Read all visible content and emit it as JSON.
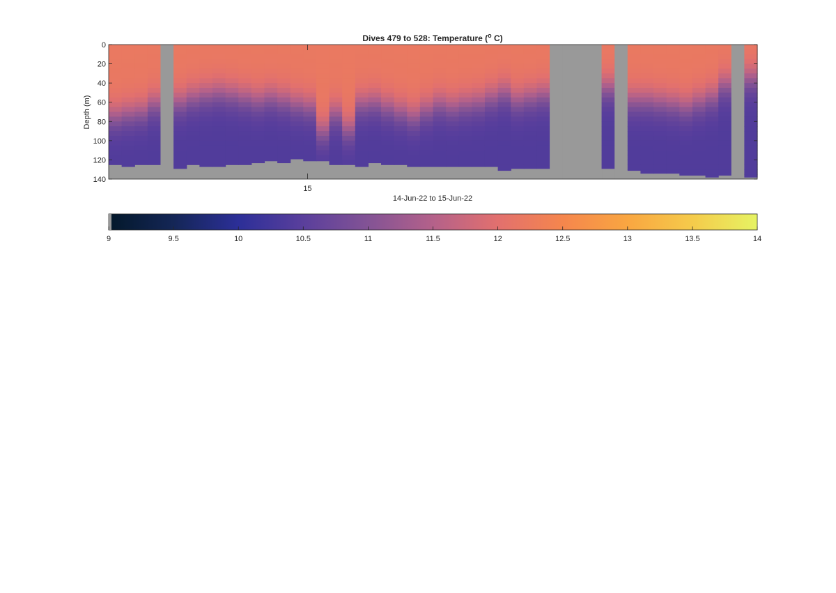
{
  "chart_data": {
    "type": "heatmap",
    "title_main": "Dives 479 to 528: Temperature (",
    "title_sup": "o",
    "title_end": " C)",
    "title_full": "Dives 479 to 528: Temperature (o C)",
    "xlabel": "14-Jun-22 to 15-Jun-22",
    "ylabel": "Depth (m)",
    "xtick_labels": [
      "15"
    ],
    "xtick_fraction": [
      0.3066
    ],
    "y_ticks": [
      0,
      20,
      40,
      60,
      80,
      100,
      120,
      140
    ],
    "ylim": [
      0,
      140
    ],
    "y_reversed": true,
    "dives": [
      479,
      528
    ],
    "no_data_color": "#999999",
    "no_data_columns": [
      4,
      34,
      35,
      36,
      37,
      39,
      48
    ],
    "profiles": [
      {
        "dive": 479,
        "surface_temp": 12.2,
        "thermocline_depth": 75,
        "bottom_temp": 10.4,
        "max_depth": 125
      },
      {
        "dive": 480,
        "surface_temp": 12.2,
        "thermocline_depth": 72,
        "bottom_temp": 10.4,
        "max_depth": 127
      },
      {
        "dive": 481,
        "surface_temp": 12.2,
        "thermocline_depth": 70,
        "bottom_temp": 10.4,
        "max_depth": 125
      },
      {
        "dive": 482,
        "surface_temp": 12.2,
        "thermocline_depth": 62,
        "bottom_temp": 10.4,
        "max_depth": 125
      },
      {
        "dive": 483,
        "surface_temp": null,
        "thermocline_depth": null,
        "bottom_temp": null,
        "max_depth": 140
      },
      {
        "dive": 484,
        "surface_temp": 12.2,
        "thermocline_depth": 60,
        "bottom_temp": 10.4,
        "max_depth": 129
      },
      {
        "dive": 485,
        "surface_temp": 12.2,
        "thermocline_depth": 55,
        "bottom_temp": 10.4,
        "max_depth": 125
      },
      {
        "dive": 486,
        "surface_temp": 12.2,
        "thermocline_depth": 52,
        "bottom_temp": 10.4,
        "max_depth": 127
      },
      {
        "dive": 487,
        "surface_temp": 12.2,
        "thermocline_depth": 50,
        "bottom_temp": 10.4,
        "max_depth": 127
      },
      {
        "dive": 488,
        "surface_temp": 12.2,
        "thermocline_depth": 52,
        "bottom_temp": 10.4,
        "max_depth": 125
      },
      {
        "dive": 489,
        "surface_temp": 12.2,
        "thermocline_depth": 55,
        "bottom_temp": 10.4,
        "max_depth": 125
      },
      {
        "dive": 490,
        "surface_temp": 12.2,
        "thermocline_depth": 58,
        "bottom_temp": 10.4,
        "max_depth": 123
      },
      {
        "dive": 491,
        "surface_temp": 12.2,
        "thermocline_depth": 55,
        "bottom_temp": 10.4,
        "max_depth": 121
      },
      {
        "dive": 492,
        "surface_temp": 12.2,
        "thermocline_depth": 58,
        "bottom_temp": 10.4,
        "max_depth": 123
      },
      {
        "dive": 493,
        "surface_temp": 12.2,
        "thermocline_depth": 62,
        "bottom_temp": 10.4,
        "max_depth": 119
      },
      {
        "dive": 494,
        "surface_temp": 12.2,
        "thermocline_depth": 65,
        "bottom_temp": 10.4,
        "max_depth": 121
      },
      {
        "dive": 495,
        "surface_temp": 12.2,
        "thermocline_depth": 90,
        "bottom_temp": 10.4,
        "max_depth": 121
      },
      {
        "dive": 496,
        "surface_temp": 12.2,
        "thermocline_depth": 72,
        "bottom_temp": 10.4,
        "max_depth": 125
      },
      {
        "dive": 497,
        "surface_temp": 12.2,
        "thermocline_depth": 88,
        "bottom_temp": 10.4,
        "max_depth": 125
      },
      {
        "dive": 498,
        "surface_temp": 12.2,
        "thermocline_depth": 62,
        "bottom_temp": 10.4,
        "max_depth": 127
      },
      {
        "dive": 499,
        "surface_temp": 12.2,
        "thermocline_depth": 60,
        "bottom_temp": 10.4,
        "max_depth": 123
      },
      {
        "dive": 500,
        "surface_temp": 12.2,
        "thermocline_depth": 65,
        "bottom_temp": 10.4,
        "max_depth": 125
      },
      {
        "dive": 501,
        "surface_temp": 12.2,
        "thermocline_depth": 70,
        "bottom_temp": 10.4,
        "max_depth": 125
      },
      {
        "dive": 502,
        "surface_temp": 12.2,
        "thermocline_depth": 75,
        "bottom_temp": 10.4,
        "max_depth": 127
      },
      {
        "dive": 503,
        "surface_temp": 12.2,
        "thermocline_depth": 68,
        "bottom_temp": 10.4,
        "max_depth": 127
      },
      {
        "dive": 504,
        "surface_temp": 12.2,
        "thermocline_depth": 62,
        "bottom_temp": 10.4,
        "max_depth": 127
      },
      {
        "dive": 505,
        "surface_temp": 12.2,
        "thermocline_depth": 65,
        "bottom_temp": 10.4,
        "max_depth": 127
      },
      {
        "dive": 506,
        "surface_temp": 12.2,
        "thermocline_depth": 62,
        "bottom_temp": 10.4,
        "max_depth": 127
      },
      {
        "dive": 507,
        "surface_temp": 12.2,
        "thermocline_depth": 60,
        "bottom_temp": 10.4,
        "max_depth": 127
      },
      {
        "dive": 508,
        "surface_temp": 12.2,
        "thermocline_depth": 55,
        "bottom_temp": 10.4,
        "max_depth": 127
      },
      {
        "dive": 509,
        "surface_temp": 12.2,
        "thermocline_depth": 50,
        "bottom_temp": 10.4,
        "max_depth": 131
      },
      {
        "dive": 510,
        "surface_temp": 12.2,
        "thermocline_depth": 58,
        "bottom_temp": 10.4,
        "max_depth": 129
      },
      {
        "dive": 511,
        "surface_temp": 12.2,
        "thermocline_depth": 55,
        "bottom_temp": 10.4,
        "max_depth": 129
      },
      {
        "dive": 512,
        "surface_temp": 12.2,
        "thermocline_depth": 52,
        "bottom_temp": 10.4,
        "max_depth": 129
      },
      {
        "dive": 513,
        "surface_temp": null,
        "thermocline_depth": null,
        "bottom_temp": null,
        "max_depth": 140
      },
      {
        "dive": 514,
        "surface_temp": null,
        "thermocline_depth": null,
        "bottom_temp": null,
        "max_depth": 140
      },
      {
        "dive": 515,
        "surface_temp": null,
        "thermocline_depth": null,
        "bottom_temp": null,
        "max_depth": 140
      },
      {
        "dive": 516,
        "surface_temp": null,
        "thermocline_depth": null,
        "bottom_temp": null,
        "max_depth": 140
      },
      {
        "dive": 517,
        "surface_temp": 12.2,
        "thermocline_depth": 45,
        "bottom_temp": 10.4,
        "max_depth": 129
      },
      {
        "dive": 518,
        "surface_temp": null,
        "thermocline_depth": null,
        "bottom_temp": null,
        "max_depth": 140
      },
      {
        "dive": 519,
        "surface_temp": 12.2,
        "thermocline_depth": 58,
        "bottom_temp": 10.4,
        "max_depth": 131
      },
      {
        "dive": 520,
        "surface_temp": 12.2,
        "thermocline_depth": 58,
        "bottom_temp": 10.4,
        "max_depth": 134
      },
      {
        "dive": 521,
        "surface_temp": 12.2,
        "thermocline_depth": 60,
        "bottom_temp": 10.4,
        "max_depth": 134
      },
      {
        "dive": 522,
        "surface_temp": 12.2,
        "thermocline_depth": 62,
        "bottom_temp": 10.4,
        "max_depth": 134
      },
      {
        "dive": 523,
        "surface_temp": 12.2,
        "thermocline_depth": 65,
        "bottom_temp": 10.4,
        "max_depth": 136
      },
      {
        "dive": 524,
        "surface_temp": 12.2,
        "thermocline_depth": 60,
        "bottom_temp": 10.4,
        "max_depth": 136
      },
      {
        "dive": 525,
        "surface_temp": 12.2,
        "thermocline_depth": 55,
        "bottom_temp": 10.4,
        "max_depth": 138
      },
      {
        "dive": 526,
        "surface_temp": 12.2,
        "thermocline_depth": 42,
        "bottom_temp": 10.4,
        "max_depth": 136
      },
      {
        "dive": 527,
        "surface_temp": null,
        "thermocline_depth": null,
        "bottom_temp": null,
        "max_depth": 140
      },
      {
        "dive": 528,
        "surface_temp": 12.2,
        "thermocline_depth": 35,
        "bottom_temp": 10.4,
        "max_depth": 138
      }
    ],
    "colorbar": {
      "range": [
        9,
        14
      ],
      "tick_labels": [
        "9",
        "9.5",
        "10",
        "10.5",
        "11",
        "11.5",
        "12",
        "12.5",
        "13",
        "13.5",
        "14"
      ],
      "tick_values": [
        9,
        9.5,
        10,
        10.5,
        11,
        11.5,
        12,
        12.5,
        13,
        13.5,
        14
      ],
      "colormap": [
        {
          "v": 9.0,
          "color": "#03182a"
        },
        {
          "v": 9.5,
          "color": "#142656"
        },
        {
          "v": 10.0,
          "color": "#2c2f98"
        },
        {
          "v": 10.5,
          "color": "#5a3f9c"
        },
        {
          "v": 11.0,
          "color": "#835395"
        },
        {
          "v": 11.5,
          "color": "#b4618a"
        },
        {
          "v": 12.0,
          "color": "#e2706e"
        },
        {
          "v": 12.5,
          "color": "#f5864d"
        },
        {
          "v": 13.0,
          "color": "#f9a641"
        },
        {
          "v": 13.5,
          "color": "#f5cb4b"
        },
        {
          "v": 14.0,
          "color": "#e6f363"
        }
      ]
    }
  }
}
